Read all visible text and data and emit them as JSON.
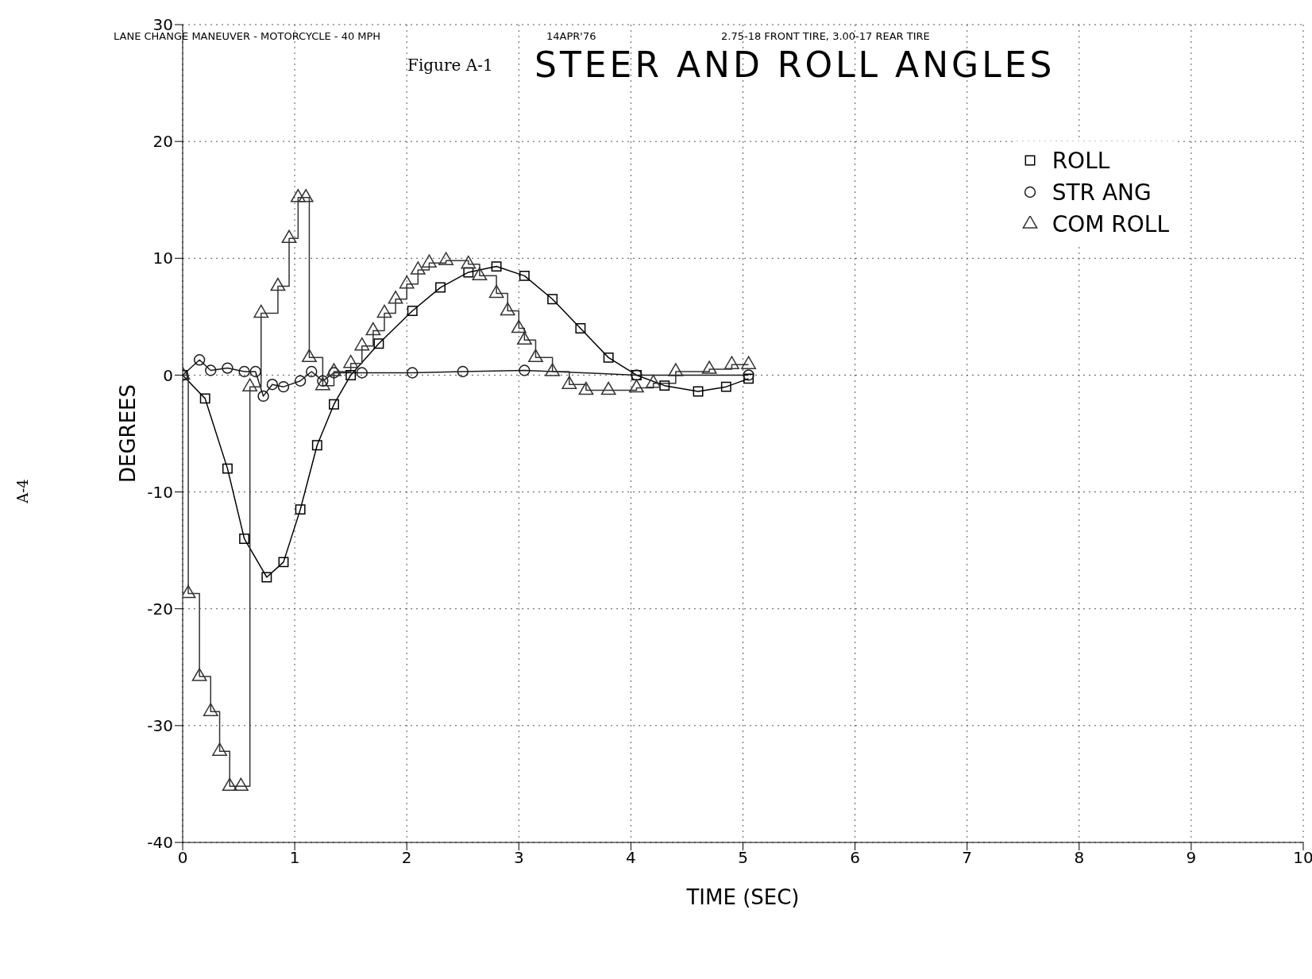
{
  "chart_data": {
    "type": "line",
    "title": "STEER AND ROLL ANGLES",
    "xlabel": "TIME (SEC)",
    "ylabel": "DEGREES",
    "annotations": [
      "LANE CHANGE MANEUVER - MOTORCYCLE - 40 MPH",
      "14APR'76",
      "2.75-18 FRONT TIRE, 3.00-17 REAR TIRE",
      "Figure A-1",
      "A-4"
    ],
    "xlim": [
      0,
      10
    ],
    "xticks": [
      0,
      1,
      2,
      3,
      4,
      5,
      6,
      7,
      8,
      9,
      10
    ],
    "ylim": [
      -40,
      30
    ],
    "yticks": [
      -40,
      -30,
      -20,
      -10,
      0,
      10,
      20,
      30
    ],
    "grid": true,
    "legend": "top right",
    "series": [
      {
        "name": "ROLL",
        "color": "#000000",
        "marker": "square",
        "x": [
          0,
          0.2,
          0.4,
          0.55,
          0.75,
          0.9,
          1.05,
          1.2,
          1.35,
          1.5,
          1.75,
          2.05,
          2.3,
          2.55,
          2.8,
          3.05,
          3.3,
          3.55,
          3.8,
          4.05,
          4.3,
          4.6,
          4.85,
          5.05
        ],
        "values": [
          0,
          -2,
          -8,
          -14,
          -17.3,
          -16,
          -11.5,
          -6,
          -2.5,
          0,
          2.7,
          5.5,
          7.5,
          8.8,
          9.3,
          8.5,
          6.5,
          4,
          1.5,
          0,
          -0.9,
          -1.4,
          -1,
          -0.3
        ]
      },
      {
        "name": "STR ANG",
        "color": "#1a1a1a",
        "marker": "circle",
        "x": [
          0,
          0.15,
          0.25,
          0.4,
          0.55,
          0.65,
          0.72,
          0.8,
          0.9,
          1.05,
          1.15,
          1.25,
          1.35,
          1.6,
          2.05,
          2.5,
          3.05,
          4.05,
          5.05
        ],
        "values": [
          0,
          1.3,
          0.4,
          0.6,
          0.3,
          0.3,
          -1.8,
          -0.8,
          -1,
          -0.5,
          0.3,
          -0.5,
          0.2,
          0.2,
          0.2,
          0.3,
          0.4,
          0,
          0
        ]
      },
      {
        "name": "COM ROLL",
        "type": "step",
        "color": "#333333",
        "marker": "triangle",
        "x": [
          0,
          0.05,
          0.15,
          0.25,
          0.33,
          0.42,
          0.52,
          0.6,
          0.7,
          0.85,
          0.95,
          1.03,
          1.1,
          1.13,
          1.25,
          1.35,
          1.5,
          1.6,
          1.7,
          1.8,
          1.9,
          2.0,
          2.1,
          2.2,
          2.35,
          2.55,
          2.65,
          2.8,
          2.9,
          3.0,
          3.05,
          3.15,
          3.3,
          3.45,
          3.6,
          3.8,
          4.05,
          4.2,
          4.4,
          4.7,
          4.9,
          5.05
        ],
        "values": [
          0,
          -18.7,
          -25.8,
          -28.8,
          -32.2,
          -35.2,
          -35.2,
          -1,
          5.3,
          7.6,
          11.7,
          15.2,
          15.2,
          1.5,
          -0.9,
          0.3,
          1,
          2.5,
          3.8,
          5.3,
          6.5,
          7.8,
          9,
          9.6,
          9.8,
          9.5,
          8.5,
          7,
          5.5,
          4,
          3,
          1.5,
          0.3,
          -0.8,
          -1.3,
          -1.3,
          -1.1,
          -0.7,
          0.3,
          0.5,
          0.9,
          0.9
        ]
      }
    ]
  }
}
